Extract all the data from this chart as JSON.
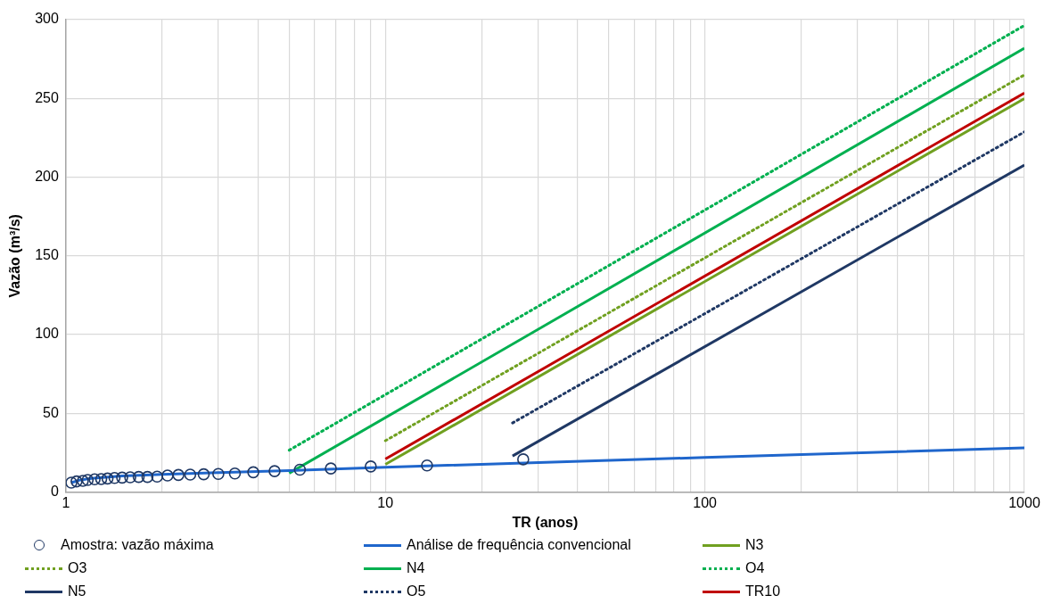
{
  "chart_data": {
    "type": "line",
    "xlabel": "TR (anos)",
    "ylabel": "Vazão (m³/s)",
    "log": "x",
    "xlim": [
      1,
      1000
    ],
    "xticks": [
      1,
      10,
      100,
      1000
    ],
    "ylim": [
      0,
      300
    ],
    "yticks": [
      0,
      50,
      100,
      150,
      200,
      250,
      300
    ],
    "grid": true,
    "legend": "bottom",
    "series": [
      {
        "name": "Amostra: vazão máxima",
        "type": "scatter",
        "marker": "circle",
        "color": "#1f3864",
        "x": [
          1.04,
          1.08,
          1.13,
          1.17,
          1.23,
          1.29,
          1.35,
          1.42,
          1.5,
          1.59,
          1.69,
          1.8,
          1.93,
          2.08,
          2.25,
          2.45,
          2.7,
          3,
          3.38,
          3.86,
          4.5,
          5.4,
          6.75,
          9,
          13.5,
          27
        ],
        "values": [
          6.0,
          6.8,
          7.1,
          7.7,
          8.1,
          8.3,
          8.6,
          9.0,
          9.2,
          9.4,
          9.6,
          9.6,
          9.8,
          10.5,
          10.9,
          11.1,
          11.3,
          11.5,
          11.8,
          12.6,
          13.3,
          14.2,
          15.0,
          16.3,
          16.9,
          20.8
        ]
      },
      {
        "name": "Análise de frequência convencional",
        "type": "line",
        "line_style": "solid",
        "color": "#1f66cc",
        "x": [
          1.04,
          1.1,
          1.2,
          1.5,
          2,
          3,
          5,
          10,
          100,
          1000
        ],
        "values": [
          6,
          7.5,
          8.7,
          10.2,
          11.3,
          12.4,
          13.7,
          15.8,
          22,
          28.1
        ]
      },
      {
        "name": "N3",
        "type": "line",
        "line_style": "solid",
        "color": "#70a020",
        "x": [
          10,
          1000
        ],
        "values": [
          17.6,
          249.9
        ]
      },
      {
        "name": "O3",
        "type": "line",
        "line_style": "dotted",
        "color": "#70a020",
        "x": [
          10,
          1000
        ],
        "values": [
          32.6,
          264.9
        ]
      },
      {
        "name": "N4",
        "type": "line",
        "line_style": "solid",
        "color": "#00b050",
        "x": [
          5,
          1000
        ],
        "values": [
          12.0,
          281.8
        ]
      },
      {
        "name": "O4",
        "type": "line",
        "line_style": "dotted",
        "color": "#00b050",
        "x": [
          5,
          1000
        ],
        "values": [
          26.6,
          296.3
        ]
      },
      {
        "name": "N5",
        "type": "line",
        "line_style": "solid",
        "color": "#1f3864",
        "x": [
          25,
          1000
        ],
        "values": [
          22.9,
          207.7
        ]
      },
      {
        "name": "O5",
        "type": "line",
        "line_style": "dotted",
        "color": "#1f3864",
        "x": [
          25,
          1000
        ],
        "values": [
          43.9,
          228.7
        ]
      },
      {
        "name": "TR10",
        "type": "line",
        "line_style": "solid",
        "color": "#c00000",
        "x": [
          10,
          1000
        ],
        "values": [
          21.0,
          253.4
        ]
      }
    ]
  }
}
